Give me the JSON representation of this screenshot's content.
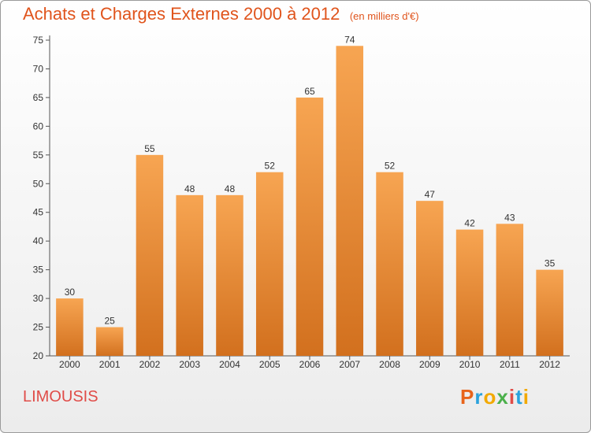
{
  "title": "Achats et Charges Externes 2000 à 2012",
  "subtitle": "(en milliers d'€)",
  "commune": "LIMOUSIS",
  "brand": "Proxiti",
  "brand_colors": [
    "#e8641b",
    "#2aa2dd",
    "#f2a900",
    "#4bb04b",
    "#e04c48",
    "#2aa2dd",
    "#f2a900"
  ],
  "colors": {
    "title": "#e0541c",
    "bar_top": "#f7a552",
    "bar_bottom": "#d2701e",
    "commune": "#e04c48"
  },
  "chart_data": {
    "type": "bar",
    "categories": [
      "2000",
      "2001",
      "2002",
      "2003",
      "2004",
      "2005",
      "2006",
      "2007",
      "2008",
      "2009",
      "2010",
      "2011",
      "2012"
    ],
    "values": [
      30,
      25,
      55,
      48,
      48,
      52,
      65,
      74,
      52,
      47,
      42,
      43,
      35
    ],
    "data_labels": [
      "30",
      "25",
      "55",
      "48",
      "48",
      "52",
      "65",
      "74",
      "52",
      "47",
      "42",
      "43",
      "35"
    ],
    "ylim": [
      20,
      75
    ],
    "yticks": [
      20,
      25,
      30,
      35,
      40,
      45,
      50,
      55,
      60,
      65,
      70,
      75
    ],
    "ytick_labels": [
      "20",
      "25",
      "30",
      "35",
      "40",
      "45",
      "50",
      "55",
      "60",
      "65",
      "70",
      "75"
    ],
    "grid": false,
    "xlabel": "",
    "ylabel": ""
  }
}
